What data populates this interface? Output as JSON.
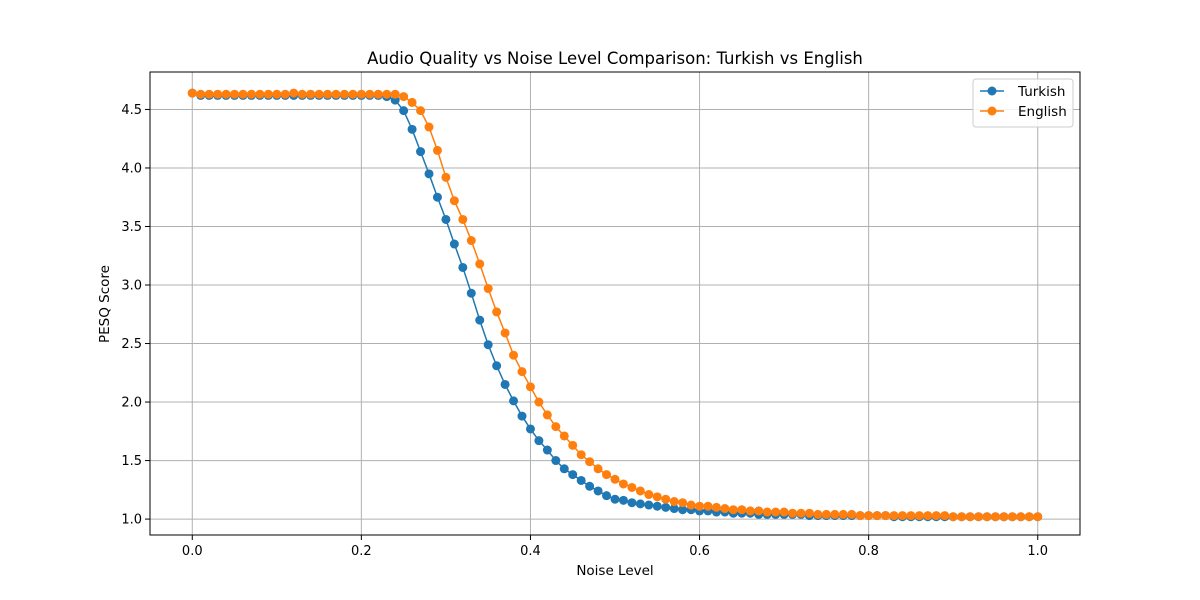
{
  "chart_data": {
    "type": "line",
    "title": "Audio Quality vs Noise Level Comparison: Turkish vs English",
    "xlabel": "Noise Level",
    "ylabel": "PESQ Score",
    "xlim": [
      -0.05,
      1.05
    ],
    "ylim": [
      0.864,
      4.82
    ],
    "xticks": [
      0.0,
      0.2,
      0.4,
      0.6,
      0.8,
      1.0
    ],
    "xtick_labels": [
      "0.0",
      "0.2",
      "0.4",
      "0.6",
      "0.8",
      "1.0"
    ],
    "yticks": [
      1.0,
      1.5,
      2.0,
      2.5,
      3.0,
      3.5,
      4.0,
      4.5
    ],
    "ytick_labels": [
      "1.0",
      "1.5",
      "2.0",
      "2.5",
      "3.0",
      "3.5",
      "4.0",
      "4.5"
    ],
    "grid": true,
    "legend_position": "top-right",
    "marker": "circle",
    "series": [
      {
        "name": "Turkish",
        "color": "#1f77b4",
        "x": [
          0.0,
          0.01,
          0.02,
          0.03,
          0.04,
          0.05,
          0.06,
          0.07,
          0.08,
          0.09,
          0.1,
          0.11,
          0.12,
          0.13,
          0.14,
          0.15,
          0.16,
          0.17,
          0.18,
          0.19,
          0.2,
          0.21,
          0.22,
          0.23,
          0.24,
          0.25,
          0.26,
          0.27,
          0.28,
          0.29,
          0.3,
          0.31,
          0.32,
          0.33,
          0.34,
          0.35,
          0.36,
          0.37,
          0.38,
          0.39,
          0.4,
          0.41,
          0.42,
          0.43,
          0.44,
          0.45,
          0.46,
          0.47,
          0.48,
          0.49,
          0.5,
          0.51,
          0.52,
          0.53,
          0.54,
          0.55,
          0.56,
          0.57,
          0.58,
          0.59,
          0.6,
          0.61,
          0.62,
          0.63,
          0.64,
          0.65,
          0.66,
          0.67,
          0.68,
          0.69,
          0.7,
          0.71,
          0.72,
          0.73,
          0.74,
          0.75,
          0.76,
          0.77,
          0.78,
          0.79,
          0.8,
          0.81,
          0.82,
          0.83,
          0.84,
          0.85,
          0.86,
          0.87,
          0.88,
          0.89,
          0.9,
          0.91,
          0.92,
          0.93,
          0.94,
          0.95,
          0.96,
          0.97,
          0.98,
          0.99,
          1.0
        ],
        "y": [
          4.64,
          4.62,
          4.62,
          4.62,
          4.62,
          4.62,
          4.62,
          4.62,
          4.62,
          4.62,
          4.62,
          4.62,
          4.62,
          4.62,
          4.62,
          4.62,
          4.62,
          4.62,
          4.62,
          4.62,
          4.62,
          4.62,
          4.62,
          4.61,
          4.58,
          4.49,
          4.33,
          4.14,
          3.95,
          3.75,
          3.56,
          3.35,
          3.15,
          2.93,
          2.7,
          2.49,
          2.31,
          2.15,
          2.01,
          1.88,
          1.77,
          1.67,
          1.59,
          1.5,
          1.43,
          1.38,
          1.33,
          1.28,
          1.24,
          1.2,
          1.17,
          1.16,
          1.14,
          1.13,
          1.12,
          1.11,
          1.1,
          1.09,
          1.08,
          1.08,
          1.07,
          1.07,
          1.06,
          1.06,
          1.05,
          1.05,
          1.05,
          1.04,
          1.04,
          1.04,
          1.04,
          1.04,
          1.04,
          1.03,
          1.03,
          1.03,
          1.03,
          1.03,
          1.03,
          1.03,
          1.03,
          1.03,
          1.03,
          1.02,
          1.02,
          1.02,
          1.02,
          1.02,
          1.02,
          1.02,
          1.02,
          1.02,
          1.02,
          1.02,
          1.02,
          1.02,
          1.02,
          1.02,
          1.02,
          1.02,
          1.02
        ]
      },
      {
        "name": "English",
        "color": "#ff7f0e",
        "x": [
          0.0,
          0.01,
          0.02,
          0.03,
          0.04,
          0.05,
          0.06,
          0.07,
          0.08,
          0.09,
          0.1,
          0.11,
          0.12,
          0.13,
          0.14,
          0.15,
          0.16,
          0.17,
          0.18,
          0.19,
          0.2,
          0.21,
          0.22,
          0.23,
          0.24,
          0.25,
          0.26,
          0.27,
          0.28,
          0.29,
          0.3,
          0.31,
          0.32,
          0.33,
          0.34,
          0.35,
          0.36,
          0.37,
          0.38,
          0.39,
          0.4,
          0.41,
          0.42,
          0.43,
          0.44,
          0.45,
          0.46,
          0.47,
          0.48,
          0.49,
          0.5,
          0.51,
          0.52,
          0.53,
          0.54,
          0.55,
          0.56,
          0.57,
          0.58,
          0.59,
          0.6,
          0.61,
          0.62,
          0.63,
          0.64,
          0.65,
          0.66,
          0.67,
          0.68,
          0.69,
          0.7,
          0.71,
          0.72,
          0.73,
          0.74,
          0.75,
          0.76,
          0.77,
          0.78,
          0.79,
          0.8,
          0.81,
          0.82,
          0.83,
          0.84,
          0.85,
          0.86,
          0.87,
          0.88,
          0.89,
          0.9,
          0.91,
          0.92,
          0.93,
          0.94,
          0.95,
          0.96,
          0.97,
          0.98,
          0.99,
          1.0
        ],
        "y": [
          4.64,
          4.63,
          4.63,
          4.63,
          4.63,
          4.63,
          4.63,
          4.63,
          4.63,
          4.63,
          4.63,
          4.63,
          4.64,
          4.63,
          4.63,
          4.63,
          4.63,
          4.63,
          4.63,
          4.63,
          4.63,
          4.63,
          4.63,
          4.63,
          4.63,
          4.61,
          4.56,
          4.49,
          4.35,
          4.15,
          3.92,
          3.72,
          3.56,
          3.38,
          3.18,
          2.97,
          2.77,
          2.59,
          2.4,
          2.26,
          2.13,
          2.0,
          1.89,
          1.79,
          1.71,
          1.63,
          1.55,
          1.49,
          1.43,
          1.38,
          1.34,
          1.3,
          1.27,
          1.24,
          1.21,
          1.19,
          1.17,
          1.15,
          1.14,
          1.12,
          1.11,
          1.11,
          1.1,
          1.09,
          1.08,
          1.08,
          1.07,
          1.07,
          1.06,
          1.06,
          1.06,
          1.05,
          1.05,
          1.05,
          1.04,
          1.04,
          1.04,
          1.04,
          1.04,
          1.03,
          1.03,
          1.03,
          1.03,
          1.03,
          1.03,
          1.03,
          1.03,
          1.03,
          1.03,
          1.03,
          1.02,
          1.02,
          1.02,
          1.02,
          1.02,
          1.02,
          1.02,
          1.02,
          1.02,
          1.02,
          1.02
        ]
      }
    ]
  }
}
